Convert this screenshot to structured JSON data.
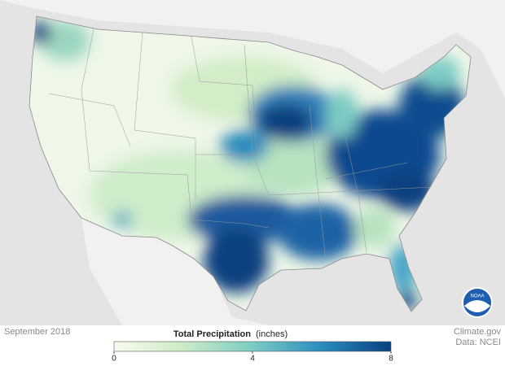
{
  "map": {
    "date": "September 2018",
    "logo": "NOAA"
  },
  "legend": {
    "title": "Total Precipitation",
    "unit": "(inches)",
    "range": [
      0,
      8
    ],
    "ticks": [
      0,
      4,
      8
    ],
    "colors": [
      "#f7fcf0",
      "#ccebc5",
      "#7bccc4",
      "#2b8cbe",
      "#084081"
    ]
  },
  "credits": {
    "source": "Climate.gov",
    "data": "Data: NCEI"
  }
}
